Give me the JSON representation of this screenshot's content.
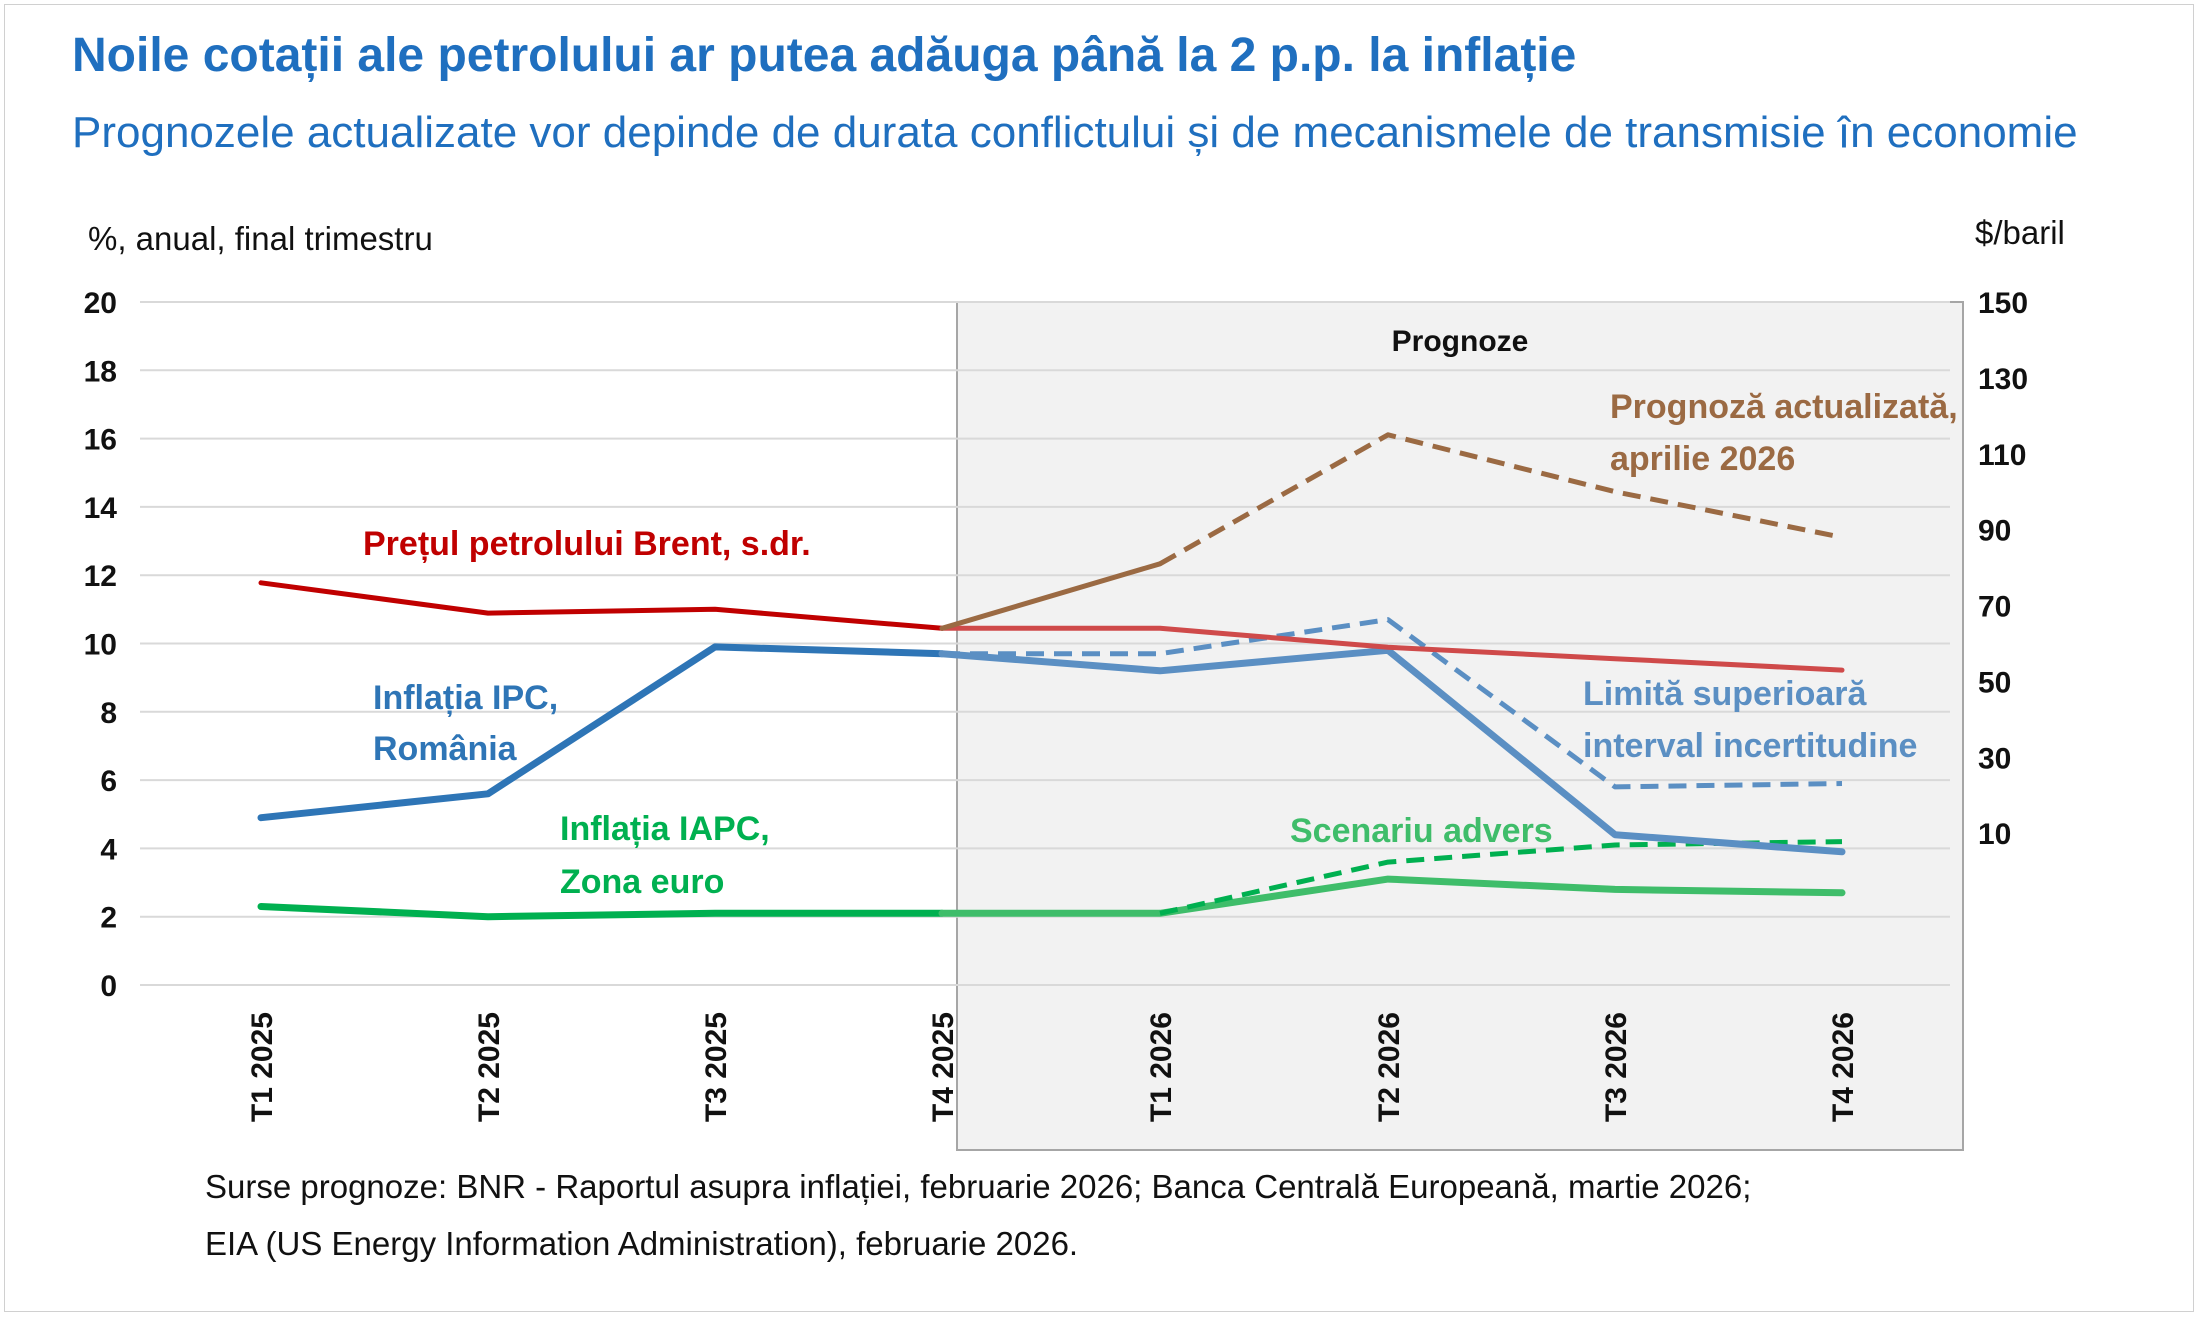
{
  "title": "Noile cotații ale petrolului ar putea adăuga până la 2 p.p. la inflație",
  "subtitle": "Prognozele actualizate vor depinde de durata conflictului și de mecanismele de transmisie în economie",
  "sources": {
    "line1": "Surse prognoze: BNR - Raportul asupra inflației, februarie 2026; Banca Centrală Europeană, martie 2026;",
    "line2": "EIA (US Energy Information Administration), februarie 2026."
  },
  "colors": {
    "brent": "#c00000",
    "brent_forecast": "#cf4a4a",
    "brent_updated": "#9b6a43",
    "ipc": "#2e75b6",
    "ipc_forecast": "#5b8fc3",
    "iapc": "#00b050",
    "iapc_forecast": "#3fbd6a",
    "forecast_box": "#f2f2f2"
  },
  "chart_data": {
    "type": "line",
    "categories": [
      "T1 2025",
      "T2 2025",
      "T3 2025",
      "T4 2025",
      "T1 2026",
      "T2 2026",
      "T3 2026",
      "T4 2026"
    ],
    "left_axis": {
      "label": "%, anual, final trimestru",
      "ylim": [
        0,
        20
      ],
      "ticks": [
        "0",
        "2",
        "4",
        "6",
        "8",
        "10",
        "12",
        "14",
        "16",
        "18",
        "20"
      ]
    },
    "right_axis": {
      "label": "$/baril",
      "ylim": [
        -30,
        150
      ],
      "ticks": [
        "10",
        "30",
        "50",
        "70",
        "90",
        "110",
        "130",
        "150"
      ]
    },
    "forecast_region": {
      "label": "Prognoze",
      "from": "T4 2025",
      "to": "T4 2026"
    },
    "grid": true,
    "series": [
      {
        "name": "Prețul petrolului Brent, s.dr.",
        "axis": "right",
        "style": "solid",
        "values": [
          76,
          68,
          69,
          64,
          64,
          59,
          56,
          53
        ]
      },
      {
        "name": "Prognoză actualizată, aprilie 2026",
        "axis": "right",
        "style": "solid-then-dashed",
        "values": [
          null,
          null,
          null,
          64,
          81,
          115,
          100,
          88
        ]
      },
      {
        "name": "Inflația IPC, România",
        "axis": "left",
        "style": "solid",
        "values": [
          4.9,
          5.6,
          9.9,
          9.7,
          9.2,
          9.8,
          4.4,
          3.9
        ]
      },
      {
        "name": "Limită superioară interval incertitudine",
        "axis": "left",
        "style": "dashed",
        "values": [
          null,
          null,
          null,
          9.7,
          9.7,
          10.7,
          5.8,
          5.9
        ]
      },
      {
        "name": "Inflația IAPC, Zona euro",
        "axis": "left",
        "style": "solid",
        "values": [
          2.3,
          2.0,
          2.1,
          2.1,
          2.1,
          3.1,
          2.8,
          2.7
        ]
      },
      {
        "name": "Scenariu advers",
        "axis": "left",
        "style": "dashed",
        "values": [
          null,
          null,
          null,
          null,
          2.1,
          3.6,
          4.1,
          4.2
        ]
      }
    ],
    "annotations": {
      "brent": "Prețul petrolului Brent, s.dr.",
      "ipc_line1": "Inflația IPC,",
      "ipc_line2": "România",
      "iapc_line1": "Inflația IAPC,",
      "iapc_line2": "Zona euro",
      "updated_line1": "Prognoză actualizată,",
      "updated_line2": "aprilie 2026",
      "upper_line1": "Limită superioară",
      "upper_line2": "interval incertitudine",
      "adverse": "Scenariu advers"
    }
  }
}
